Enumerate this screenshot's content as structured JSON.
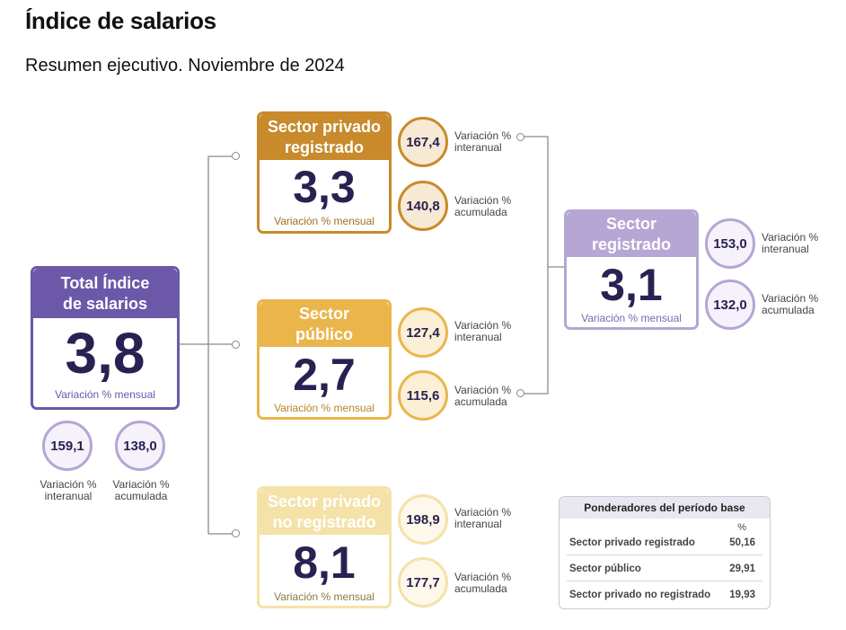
{
  "title": "Índice de salarios",
  "subtitle": "Resumen ejecutivo. Noviembre de 2024",
  "colors": {
    "total": "#6b58a8",
    "sector_registrado": "#b5a6d4",
    "privado_registrado": "#c88a2b",
    "publico": "#eab54b",
    "no_registrado": "#f4e2a8",
    "number": "#2a2152"
  },
  "total": {
    "head": [
      "Total Índice",
      "de salarios"
    ],
    "value": "3,8",
    "label": "Variación % mensual",
    "interanual": "159,1",
    "acumulada": "138,0",
    "interanual_label": [
      "Variación %",
      "interanual"
    ],
    "acumulada_label": [
      "Variación %",
      "acumulada"
    ]
  },
  "privado_registrado": {
    "head": [
      "Sector privado",
      "registrado"
    ],
    "value": "3,3",
    "label": "Variación % mensual",
    "interanual": "167,4",
    "acumulada": "140,8",
    "interanual_label": [
      "Variación %",
      "interanual"
    ],
    "acumulada_label": [
      "Variación %",
      "acumulada"
    ]
  },
  "publico": {
    "head": [
      "Sector",
      "público"
    ],
    "value": "2,7",
    "label": "Variación % mensual",
    "interanual": "127,4",
    "acumulada": "115,6",
    "interanual_label": [
      "Variación %",
      "interanual"
    ],
    "acumulada_label": [
      "Variación %",
      "acumulada"
    ]
  },
  "no_registrado": {
    "head": [
      "Sector privado",
      "no registrado"
    ],
    "value": "8,1",
    "label": "Variación % mensual",
    "interanual": "198,9",
    "acumulada": "177,7",
    "interanual_label": [
      "Variación %",
      "interanual"
    ],
    "acumulada_label": [
      "Variación %",
      "acumulada"
    ]
  },
  "sector_registrado": {
    "head": [
      "Sector",
      "registrado"
    ],
    "value": "3,1",
    "label": "Variación % mensual",
    "interanual": "153,0",
    "acumulada": "132,0",
    "interanual_label": [
      "Variación %",
      "interanual"
    ],
    "acumulada_label": [
      "Variación %",
      "acumulada"
    ]
  },
  "ponderadores": {
    "title": "Ponderadores del período base",
    "unit": "%",
    "rows": [
      {
        "name": "Sector privado registrado",
        "value": "50,16"
      },
      {
        "name": "Sector público",
        "value": "29,91"
      },
      {
        "name": "Sector privado no registrado",
        "value": "19,93"
      }
    ]
  }
}
